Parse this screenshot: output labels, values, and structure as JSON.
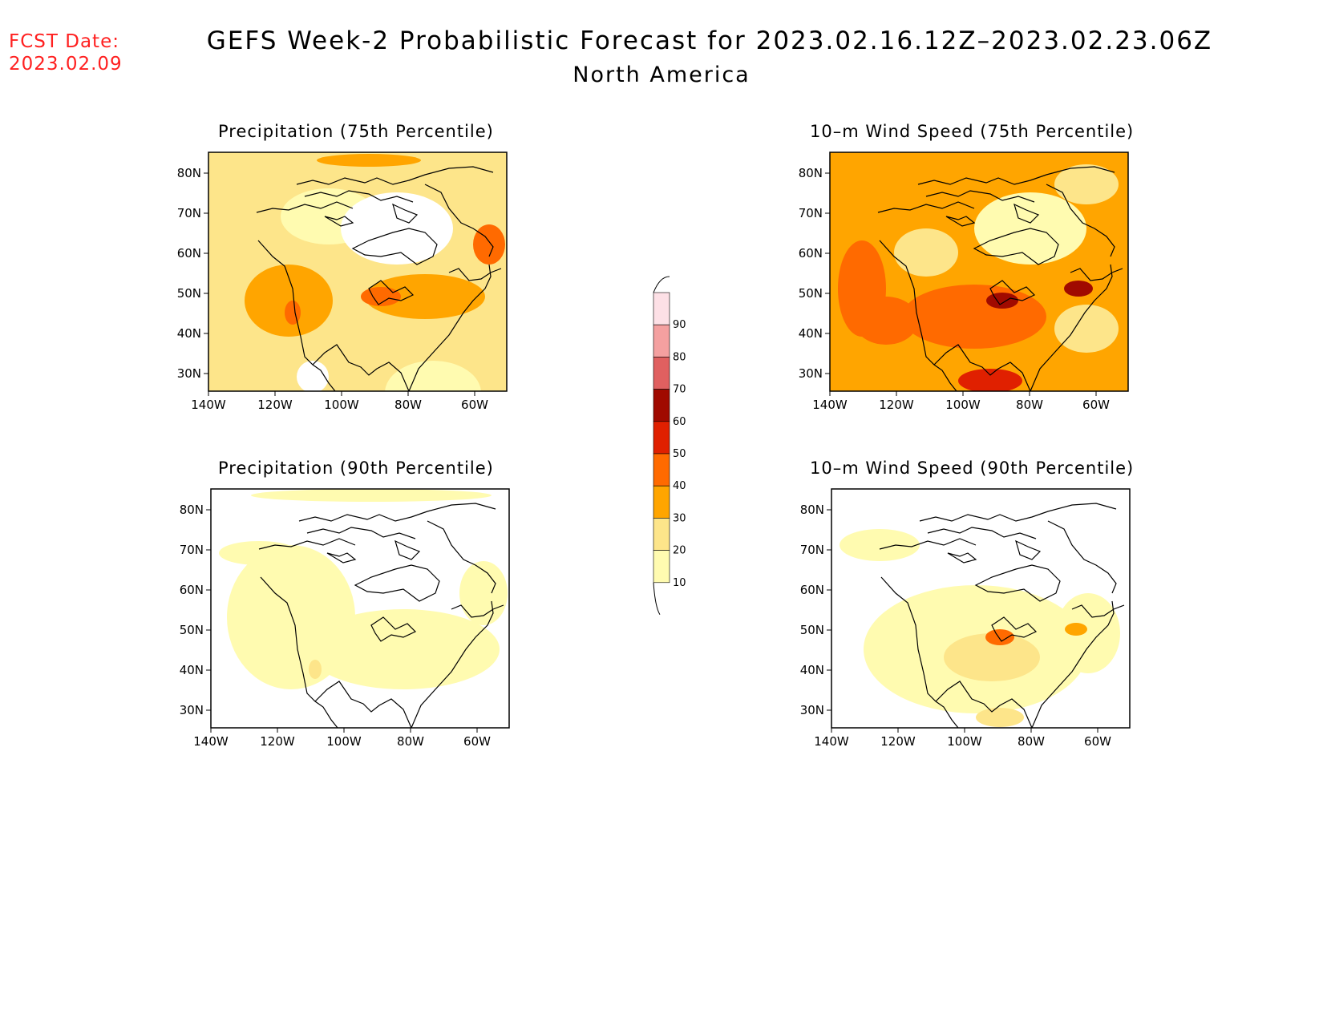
{
  "header": {
    "fcst_label": "FCST Date:",
    "fcst_date": "2023.02.09",
    "title": "GEFS Week-2 Probabilistic Forecast for 2023.02.16.12Z–2023.02.23.06Z",
    "subtitle": "North America"
  },
  "panels": [
    {
      "id": "precip75",
      "title": "Precipitation (75th Percentile)",
      "level": "medium"
    },
    {
      "id": "wind75",
      "title": "10–m Wind Speed (75th Percentile)",
      "level": "high"
    },
    {
      "id": "precip90",
      "title": "Precipitation (90th Percentile)",
      "level": "low"
    },
    {
      "id": "wind90",
      "title": "10–m Wind Speed (90th Percentile)",
      "level": "low-medium"
    }
  ],
  "axes": {
    "lat_labels": [
      "80N",
      "70N",
      "60N",
      "50N",
      "40N",
      "30N"
    ],
    "lon_labels": [
      "140W",
      "120W",
      "100W",
      "80W",
      "60W"
    ]
  },
  "colorbar": {
    "labels": [
      "10",
      "20",
      "30",
      "40",
      "50",
      "60",
      "70",
      "80",
      "90"
    ],
    "colors": [
      "#fffbb0",
      "#fde58a",
      "#ffa500",
      "#ff6a00",
      "#e02000",
      "#a00a00",
      "#e06060",
      "#f4a0a0",
      "#fde0e6"
    ]
  }
}
